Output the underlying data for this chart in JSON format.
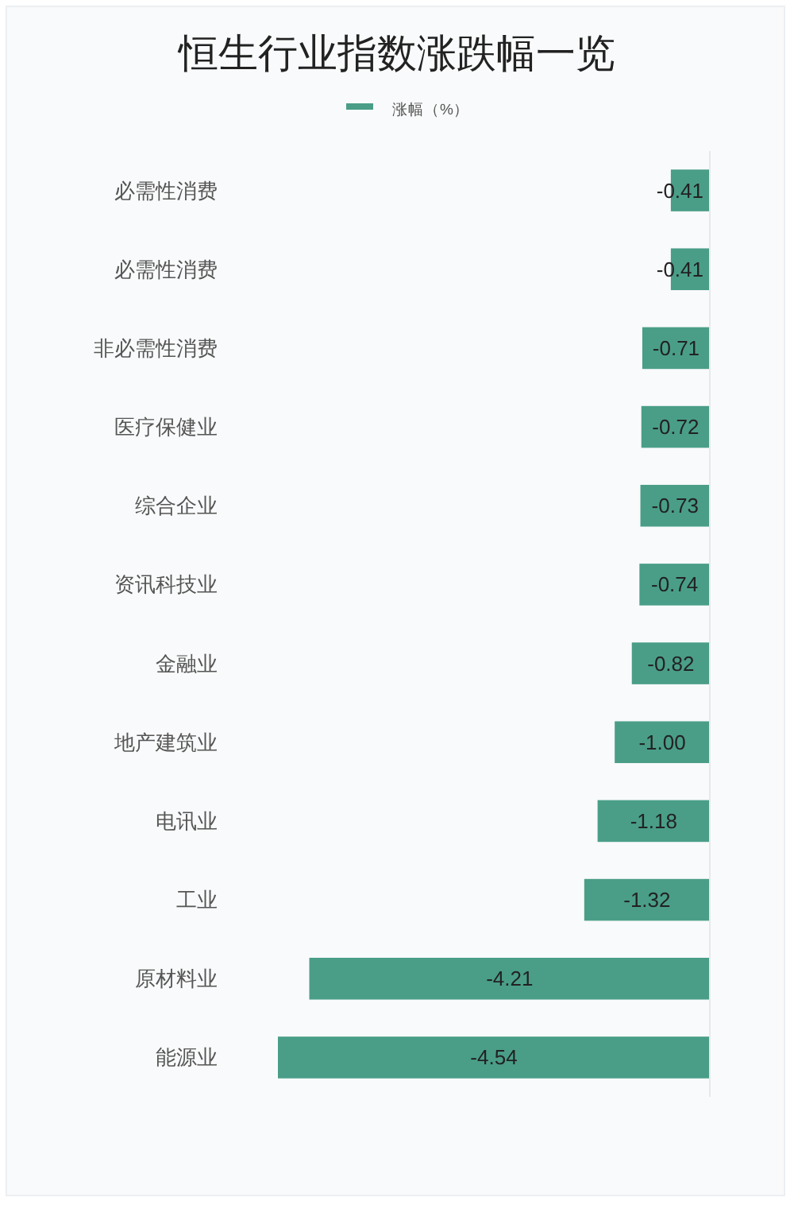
{
  "chart_data": {
    "type": "bar",
    "title": "恒生行业指数涨跌幅一览",
    "orientation": "horizontal",
    "legend": "top",
    "categories": [
      "必需性消费",
      "必需性消费",
      "非必需性消费",
      "医疗保健业",
      "综合企业",
      "资讯科技业",
      "金融业",
      "地产建筑业",
      "电讯业",
      "工业",
      "原材料业",
      "能源业"
    ],
    "series": [
      {
        "name": "涨幅（%）",
        "color": "#4a9e88",
        "values": [
          -0.41,
          -0.41,
          -0.71,
          -0.72,
          -0.73,
          -0.74,
          -0.82,
          -1.0,
          -1.18,
          -1.32,
          -4.21,
          -4.54
        ],
        "value_labels": [
          "-0.41",
          "-0.41",
          "-0.71",
          "-0.72",
          "-0.73",
          "-0.74",
          "-0.82",
          "-1.00",
          "-1.18",
          "-1.32",
          "-4.21",
          "-4.54"
        ]
      }
    ]
  }
}
